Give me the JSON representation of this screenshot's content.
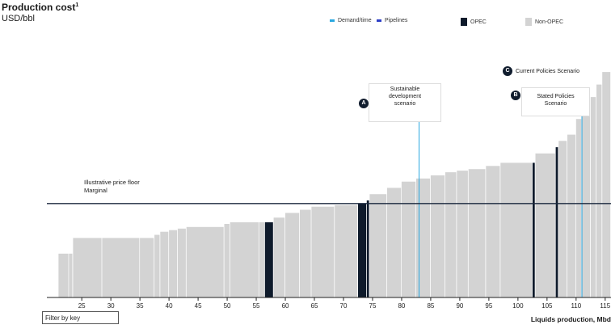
{
  "chart_data": {
    "type": "bar",
    "title": "Production cost",
    "title_sup": "1",
    "unit": "USD/bbl",
    "xlabel": "Liquids production, Mbd",
    "xlim": [
      19,
      116
    ],
    "xticks": [
      25,
      30,
      35,
      40,
      45,
      50,
      55,
      60,
      65,
      70,
      75,
      80,
      85,
      90,
      95,
      100,
      105,
      110,
      115
    ],
    "ylim": [
      0,
      95
    ],
    "gridlines": false,
    "legend": [
      {
        "name": "Demand/time",
        "color": "#29a8e0"
      },
      {
        "name": "Pipelines",
        "color": "#2d3fc7"
      },
      {
        "name": "OPEC",
        "color": "#0e1a2b"
      },
      {
        "name": "Non-OPEC",
        "color": "#d3d3d3"
      }
    ],
    "baseline": {
      "label_line1": "Illustrative price floor",
      "label_line2": "Marginal",
      "value": 30
    },
    "bars": [
      {
        "x0": 21.0,
        "x1": 22.8,
        "cost": 14,
        "group": "Non-OPEC"
      },
      {
        "x0": 22.8,
        "x1": 23.5,
        "cost": 14,
        "group": "Non-OPEC"
      },
      {
        "x0": 23.5,
        "x1": 28.5,
        "cost": 19,
        "group": "Non-OPEC"
      },
      {
        "x0": 28.5,
        "x1": 35.0,
        "cost": 19,
        "group": "Non-OPEC"
      },
      {
        "x0": 35.0,
        "x1": 37.5,
        "cost": 19,
        "group": "Non-OPEC"
      },
      {
        "x0": 37.5,
        "x1": 38.5,
        "cost": 20,
        "group": "Non-OPEC"
      },
      {
        "x0": 38.5,
        "x1": 40.0,
        "cost": 21,
        "group": "Non-OPEC"
      },
      {
        "x0": 40.0,
        "x1": 41.5,
        "cost": 21.5,
        "group": "Non-OPEC"
      },
      {
        "x0": 41.5,
        "x1": 43.0,
        "cost": 22,
        "group": "Non-OPEC"
      },
      {
        "x0": 43.0,
        "x1": 49.5,
        "cost": 22.5,
        "group": "Non-OPEC"
      },
      {
        "x0": 49.5,
        "x1": 50.5,
        "cost": 23.5,
        "group": "Non-OPEC"
      },
      {
        "x0": 50.5,
        "x1": 55.5,
        "cost": 24,
        "group": "Non-OPEC"
      },
      {
        "x0": 55.5,
        "x1": 56.5,
        "cost": 24,
        "group": "Non-OPEC"
      },
      {
        "x0": 56.5,
        "x1": 58.0,
        "cost": 24,
        "group": "OPEC"
      },
      {
        "x0": 58.0,
        "x1": 60.0,
        "cost": 25.5,
        "group": "Non-OPEC"
      },
      {
        "x0": 60.0,
        "x1": 62.5,
        "cost": 27,
        "group": "Non-OPEC"
      },
      {
        "x0": 62.5,
        "x1": 64.5,
        "cost": 28,
        "group": "Non-OPEC"
      },
      {
        "x0": 64.5,
        "x1": 68.5,
        "cost": 29,
        "group": "Non-OPEC"
      },
      {
        "x0": 68.5,
        "x1": 72.5,
        "cost": 29.5,
        "group": "Non-OPEC"
      },
      {
        "x0": 72.5,
        "x1": 74.0,
        "cost": 30,
        "group": "OPEC"
      },
      {
        "x0": 74.0,
        "x1": 74.5,
        "cost": 31,
        "group": "OPEC"
      },
      {
        "x0": 74.5,
        "x1": 77.5,
        "cost": 33,
        "group": "Non-OPEC"
      },
      {
        "x0": 77.5,
        "x1": 80.0,
        "cost": 35,
        "group": "Non-OPEC"
      },
      {
        "x0": 80.0,
        "x1": 82.5,
        "cost": 37,
        "group": "Non-OPEC"
      },
      {
        "x0": 82.5,
        "x1": 85.0,
        "cost": 38,
        "group": "Non-OPEC"
      },
      {
        "x0": 85.0,
        "x1": 87.5,
        "cost": 39,
        "group": "Non-OPEC"
      },
      {
        "x0": 87.5,
        "x1": 89.5,
        "cost": 40,
        "group": "Non-OPEC"
      },
      {
        "x0": 89.5,
        "x1": 91.5,
        "cost": 40.5,
        "group": "Non-OPEC"
      },
      {
        "x0": 91.5,
        "x1": 94.5,
        "cost": 41,
        "group": "Non-OPEC"
      },
      {
        "x0": 94.5,
        "x1": 97.0,
        "cost": 42,
        "group": "Non-OPEC"
      },
      {
        "x0": 97.0,
        "x1": 102.5,
        "cost": 43,
        "group": "Non-OPEC"
      },
      {
        "x0": 102.5,
        "x1": 103.0,
        "cost": 43,
        "group": "OPEC"
      },
      {
        "x0": 103.0,
        "x1": 106.5,
        "cost": 46,
        "group": "Non-OPEC"
      },
      {
        "x0": 106.5,
        "x1": 107.0,
        "cost": 48,
        "group": "OPEC"
      },
      {
        "x0": 107.0,
        "x1": 108.5,
        "cost": 50,
        "group": "Non-OPEC"
      },
      {
        "x0": 108.5,
        "x1": 110.0,
        "cost": 52,
        "group": "Non-OPEC"
      },
      {
        "x0": 110.0,
        "x1": 111.0,
        "cost": 57,
        "group": "Non-OPEC"
      },
      {
        "x0": 111.0,
        "x1": 112.5,
        "cost": 60,
        "group": "Non-OPEC"
      },
      {
        "x0": 112.5,
        "x1": 113.5,
        "cost": 64,
        "group": "Non-OPEC"
      },
      {
        "x0": 113.5,
        "x1": 114.5,
        "cost": 68,
        "group": "Non-OPEC"
      },
      {
        "x0": 114.5,
        "x1": 116.0,
        "cost": 72,
        "group": "Non-OPEC"
      }
    ],
    "scenarios": [
      {
        "badge": "A",
        "lines": [
          "Sustainable",
          "development",
          "scenario"
        ],
        "x": 83
      },
      {
        "badge": "B",
        "lines": [
          "Stated Policies",
          "Scenario"
        ],
        "x": 111
      },
      {
        "badge": "C",
        "lines": [
          "Current Policies Scenario"
        ],
        "x": null
      }
    ]
  },
  "ui": {
    "filter_label": "Filter by key"
  }
}
